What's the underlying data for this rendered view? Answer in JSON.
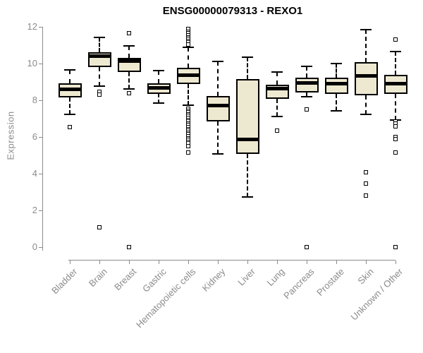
{
  "chart_data": {
    "type": "boxplot",
    "title": "ENSG00000079313 - REXO1",
    "xlabel": "",
    "ylabel": "Expression",
    "ylim": [
      0,
      12
    ],
    "yticks": [
      0,
      2,
      4,
      6,
      8,
      10,
      12
    ],
    "grid": false,
    "legend": false,
    "categories": [
      "Bladder",
      "Brain",
      "Breast",
      "Gastric",
      "Hematopoietic cells",
      "Kidney",
      "Liver",
      "Lung",
      "Pancreas",
      "Prostate",
      "Skin",
      "Unknown / Other"
    ],
    "boxes": [
      {
        "category": "Bladder",
        "whisker_low": 7.25,
        "q1": 8.18,
        "median": 8.6,
        "q3": 8.95,
        "whisker_high": 9.67,
        "outliers": [
          6.55
        ]
      },
      {
        "category": "Brain",
        "whisker_low": 8.79,
        "q1": 9.81,
        "median": 10.43,
        "q3": 10.62,
        "whisker_high": 11.42,
        "outliers": [
          8.47,
          8.31,
          1.08
        ]
      },
      {
        "category": "Breast",
        "whisker_low": 8.63,
        "q1": 9.56,
        "median": 10.13,
        "q3": 10.33,
        "whisker_high": 10.97,
        "outliers": [
          11.68,
          8.41,
          0
        ]
      },
      {
        "category": "Gastric",
        "whisker_low": 7.86,
        "q1": 8.35,
        "median": 8.68,
        "q3": 8.95,
        "whisker_high": 9.63,
        "outliers": []
      },
      {
        "category": "Hematopoietic cells",
        "whisker_low": 7.73,
        "q1": 8.88,
        "median": 9.38,
        "q3": 9.78,
        "whisker_high": 10.91,
        "outliers": [
          11.9,
          11.75,
          11.65,
          11.55,
          11.45,
          11.35,
          11.25,
          11.15,
          11.05,
          7.55,
          7.45,
          7.35,
          7.25,
          7.15,
          7.05,
          6.95,
          6.85,
          6.75,
          6.65,
          6.55,
          6.45,
          6.35,
          6.25,
          6.15,
          6.05,
          5.95,
          5.85,
          5.75,
          5.65,
          5.5,
          5.18
        ]
      },
      {
        "category": "Kidney",
        "whisker_low": 5.08,
        "q1": 6.87,
        "median": 7.74,
        "q3": 8.24,
        "whisker_high": 10.14,
        "outliers": []
      },
      {
        "category": "Liver",
        "whisker_low": 2.75,
        "q1": 5.08,
        "median": 5.88,
        "q3": 9.18,
        "whisker_high": 10.36,
        "outliers": []
      },
      {
        "category": "Lung",
        "whisker_low": 7.13,
        "q1": 8.09,
        "median": 8.64,
        "q3": 8.86,
        "whisker_high": 9.56,
        "outliers": [
          6.36
        ]
      },
      {
        "category": "Pancreas",
        "whisker_low": 8.2,
        "q1": 8.42,
        "median": 8.97,
        "q3": 9.25,
        "whisker_high": 9.85,
        "outliers": [
          7.5,
          0
        ]
      },
      {
        "category": "Prostate",
        "whisker_low": 7.45,
        "q1": 8.35,
        "median": 8.93,
        "q3": 9.24,
        "whisker_high": 10.01,
        "outliers": []
      },
      {
        "category": "Skin",
        "whisker_low": 7.25,
        "q1": 8.28,
        "median": 9.32,
        "q3": 10.08,
        "whisker_high": 11.87,
        "outliers": [
          4.1,
          3.49,
          2.82
        ]
      },
      {
        "category": "Unknown / Other",
        "whisker_low": 6.93,
        "q1": 8.37,
        "median": 8.93,
        "q3": 9.4,
        "whisker_high": 10.68,
        "outliers": [
          11.32,
          6.85,
          6.73,
          6.6,
          6.03,
          5.9,
          5.15,
          0
        ]
      }
    ],
    "colors": {
      "box_fill": "#ede8d0",
      "box_border": "#000000",
      "median": "#000000",
      "axis": "#8b8b8b",
      "labels": "#8b8b8b",
      "title": "#000000",
      "background": "#ffffff"
    }
  }
}
